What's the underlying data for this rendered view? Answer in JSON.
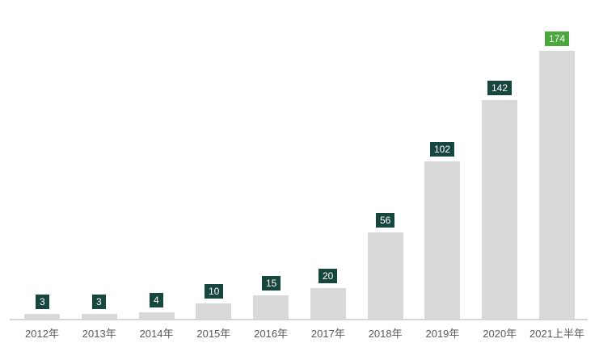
{
  "chart_data": {
    "type": "bar",
    "categories": [
      "2012年",
      "2013年",
      "2014年",
      "2015年",
      "2016年",
      "2017年",
      "2018年",
      "2019年",
      "2020年",
      "2021上半年"
    ],
    "values": [
      3,
      3,
      4,
      10,
      15,
      20,
      56,
      102,
      142,
      174
    ],
    "title": "",
    "xlabel": "",
    "ylabel": "",
    "ylim": [
      0,
      180
    ],
    "grid": false,
    "legend": false,
    "data_labels": true,
    "highlight_index": 9,
    "colors": {
      "bar": "#d9d9d9",
      "data_label_bg": "#17463f",
      "data_label_bg_highlight": "#4ba83d",
      "data_label_text": "#ffffff",
      "axis_line": "#d6d6d6",
      "tick_text": "#595959"
    }
  }
}
